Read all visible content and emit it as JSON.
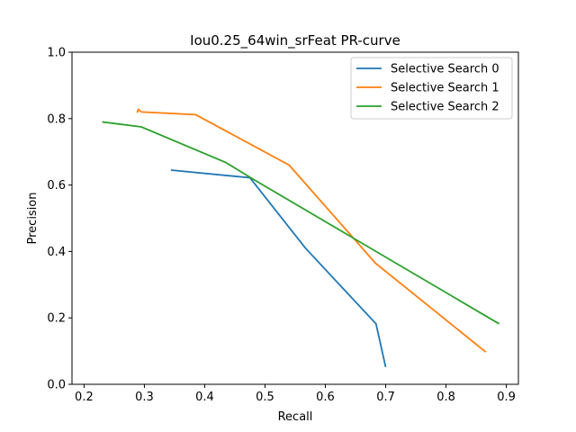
{
  "chart_data": {
    "type": "line",
    "title": "Iou0.25_64win_srFeat PR-curve",
    "xlabel": "Recall",
    "ylabel": "Precision",
    "xlim": [
      0.18,
      0.92
    ],
    "ylim": [
      0.0,
      1.0
    ],
    "x_ticks": [
      "0.2",
      "0.3",
      "0.4",
      "0.5",
      "0.6",
      "0.7",
      "0.8",
      "0.9"
    ],
    "y_ticks": [
      "0.0",
      "0.2",
      "0.4",
      "0.6",
      "0.8",
      "1.0"
    ],
    "grid": false,
    "legend_position": "top-right",
    "series": [
      {
        "name": "Selective Search 0",
        "color": "#1f77b4",
        "points": [
          [
            0.344,
            0.645
          ],
          [
            0.475,
            0.622
          ],
          [
            0.567,
            0.41
          ],
          [
            0.684,
            0.182
          ],
          [
            0.7,
            0.052
          ]
        ]
      },
      {
        "name": "Selective Search 1",
        "color": "#ff7f0e",
        "points": [
          [
            0.288,
            0.818
          ],
          [
            0.29,
            0.828
          ],
          [
            0.295,
            0.82
          ],
          [
            0.385,
            0.812
          ],
          [
            0.54,
            0.66
          ],
          [
            0.683,
            0.365
          ],
          [
            0.866,
            0.097
          ]
        ]
      },
      {
        "name": "Selective Search 2",
        "color": "#2ca02c",
        "points": [
          [
            0.23,
            0.79
          ],
          [
            0.295,
            0.775
          ],
          [
            0.435,
            0.668
          ],
          [
            0.48,
            0.618
          ],
          [
            0.888,
            0.182
          ]
        ]
      }
    ]
  }
}
